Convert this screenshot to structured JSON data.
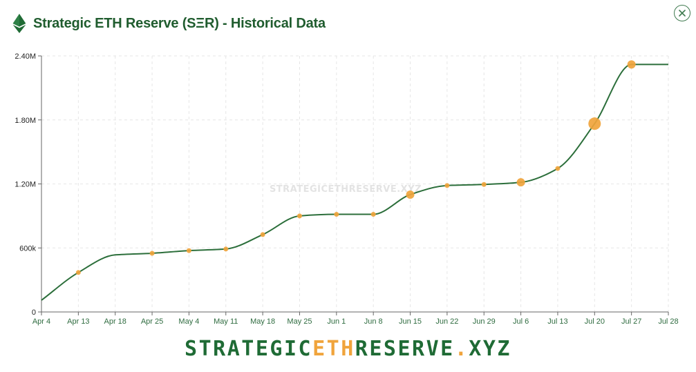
{
  "header": {
    "title": "Strategic ETH Reserve (SΞR) - Historical Data",
    "icon": "ethereum-icon",
    "close_icon": "close-icon"
  },
  "colors": {
    "brand_green": "#1f6b35",
    "line_green": "#2b6e3a",
    "accent_orange": "#f0a43c",
    "grid": "#e6e6e6"
  },
  "chart_data": {
    "type": "line",
    "title": "",
    "xlabel": "",
    "ylabel": "",
    "ylim": [
      0,
      2400000
    ],
    "y_ticks": [
      {
        "value": 0,
        "label": "0"
      },
      {
        "value": 600000,
        "label": "600k"
      },
      {
        "value": 1200000,
        "label": "1.20M"
      },
      {
        "value": 1800000,
        "label": "1.80M"
      },
      {
        "value": 2400000,
        "label": "2.40M"
      }
    ],
    "x_ticks": [
      "Apr 4",
      "Apr 13",
      "Apr 18",
      "Apr 25",
      "May 4",
      "May 11",
      "May 18",
      "May 25",
      "Jun 1",
      "Jun 8",
      "Jun 15",
      "Jun 22",
      "Jun 29",
      "Jul 6",
      "Jul 13",
      "Jul 20",
      "Jul 27",
      "Jul 28"
    ],
    "grid": true,
    "series": [
      {
        "color": "#2b6e3a",
        "points": [
          {
            "x": "Apr 4",
            "y": 110000
          },
          {
            "x": "Apr 13",
            "y": 370000,
            "marker": "small"
          },
          {
            "x": "Apr 18",
            "y": 535000
          },
          {
            "x": "Apr 25",
            "y": 550000,
            "marker": "small"
          },
          {
            "x": "May 4",
            "y": 575000,
            "marker": "small"
          },
          {
            "x": "May 11",
            "y": 590000,
            "marker": "small"
          },
          {
            "x": "May 18",
            "y": 725000,
            "marker": "small"
          },
          {
            "x": "May 25",
            "y": 900000,
            "marker": "small"
          },
          {
            "x": "Jun 1",
            "y": 915000,
            "marker": "small"
          },
          {
            "x": "Jun 8",
            "y": 915000,
            "marker": "small"
          },
          {
            "x": "Jun 15",
            "y": 1100000,
            "marker": "medium"
          },
          {
            "x": "Jun 22",
            "y": 1185000,
            "marker": "small"
          },
          {
            "x": "Jun 29",
            "y": 1195000,
            "marker": "small"
          },
          {
            "x": "Jul 6",
            "y": 1215000,
            "marker": "medium"
          },
          {
            "x": "Jul 13",
            "y": 1345000,
            "marker": "small"
          },
          {
            "x": "Jul 20",
            "y": 1765000,
            "marker": "large"
          },
          {
            "x": "Jul 27",
            "y": 2320000,
            "marker": "medium"
          },
          {
            "x": "Jul 28",
            "y": 2320000
          }
        ]
      }
    ],
    "watermark": "STRATEGICETHRESERVE.XYZ"
  },
  "footer": {
    "part1": "STRATEGIC",
    "part2": "ETH",
    "part3": "RESERVE",
    "part4": ".",
    "part5": "XYZ"
  }
}
